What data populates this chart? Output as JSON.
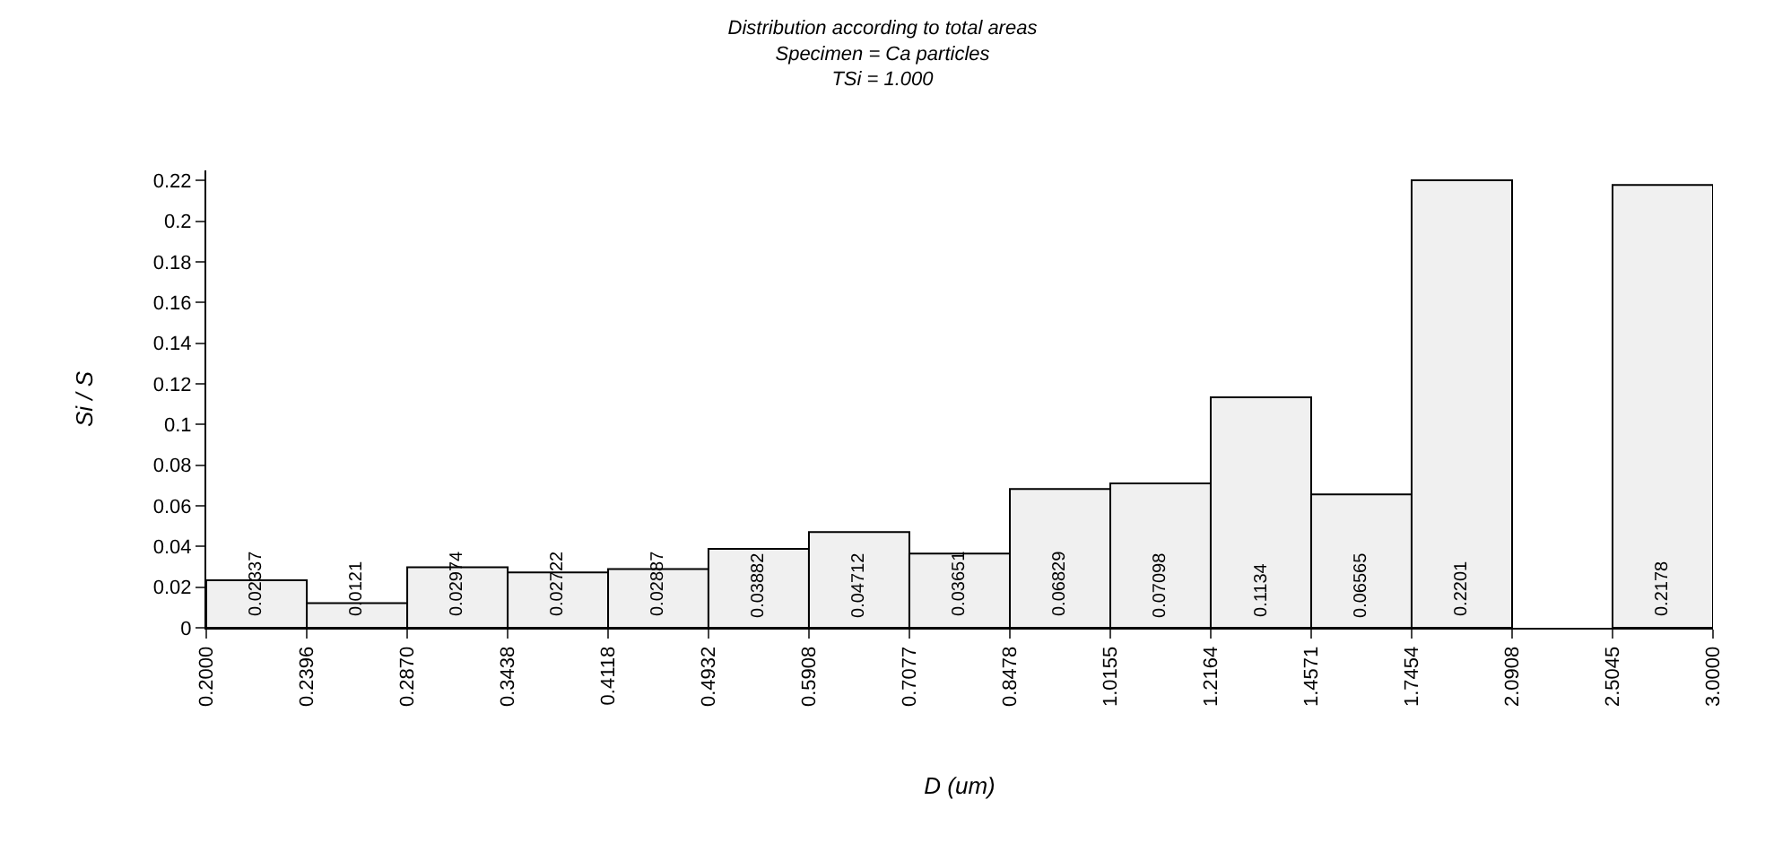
{
  "chart_data": {
    "type": "histogram",
    "title": "Distribution according to total areas",
    "subtitle": "Specimen = Ca particles\nTSi = 1.000",
    "xlabel": "D (um)",
    "ylabel": "Si / S",
    "bins": [
      0.2,
      0.2396,
      0.287,
      0.3438,
      0.4118,
      0.4932,
      0.5908,
      0.7077,
      0.8478,
      1.0155,
      1.2164,
      1.4571,
      1.7454,
      2.0908,
      2.5045,
      3.0
    ],
    "values": [
      0.02337,
      0.0121,
      0.02974,
      0.02722,
      0.02887,
      0.03882,
      0.04712,
      0.03651,
      0.06829,
      0.07098,
      0.1134,
      0.06565,
      0.2201,
      null,
      0.2178
    ],
    "color": "#f0f0f0",
    "log": "x",
    "data_labels": true,
    "xlim": [
      0.2,
      3.0
    ],
    "xticks": [
      {
        "value": 0.2,
        "label": "0.2000"
      },
      0.2396,
      {
        "value": 0.287,
        "label": "0.2870"
      },
      0.3438,
      0.4118,
      0.4932,
      0.5908,
      0.7077,
      0.8478,
      1.0155,
      1.2164,
      1.4571,
      1.7454,
      2.0908,
      2.5045,
      {
        "value": 3.0,
        "label": "3.0000"
      }
    ],
    "ylim": [
      0,
      0.225
    ],
    "yticks": [
      0,
      0.02,
      0.04,
      0.06,
      0.08,
      0.1,
      0.12,
      0.14,
      0.16,
      0.18,
      0.2,
      0.22
    ]
  }
}
